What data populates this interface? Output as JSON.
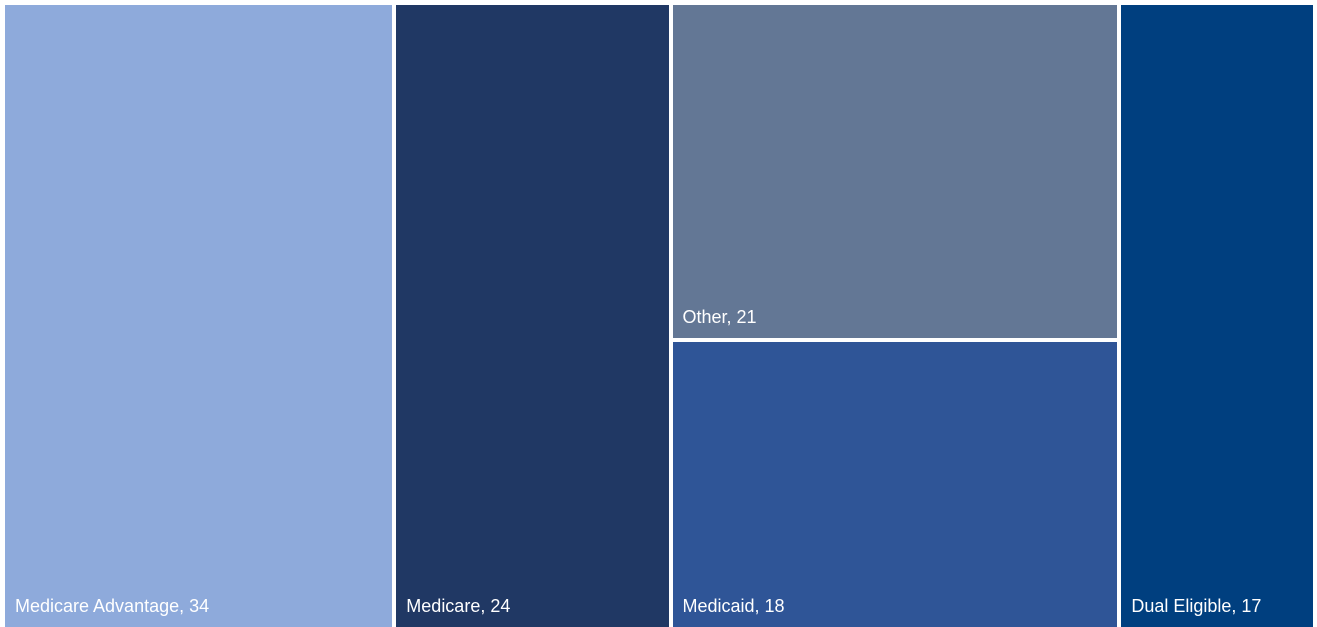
{
  "chart_data": {
    "type": "treemap",
    "values": [
      34,
      24,
      21,
      18,
      17
    ],
    "value_labels": [
      "Medicare Advantage, 34",
      "Medicare, 24",
      "Other, 21",
      "Medicaid, 18",
      "Dual Eligible, 17"
    ],
    "colors": [
      "#8eaadb",
      "#203864",
      "#637795",
      "#2f5597",
      "#003f7f"
    ]
  }
}
